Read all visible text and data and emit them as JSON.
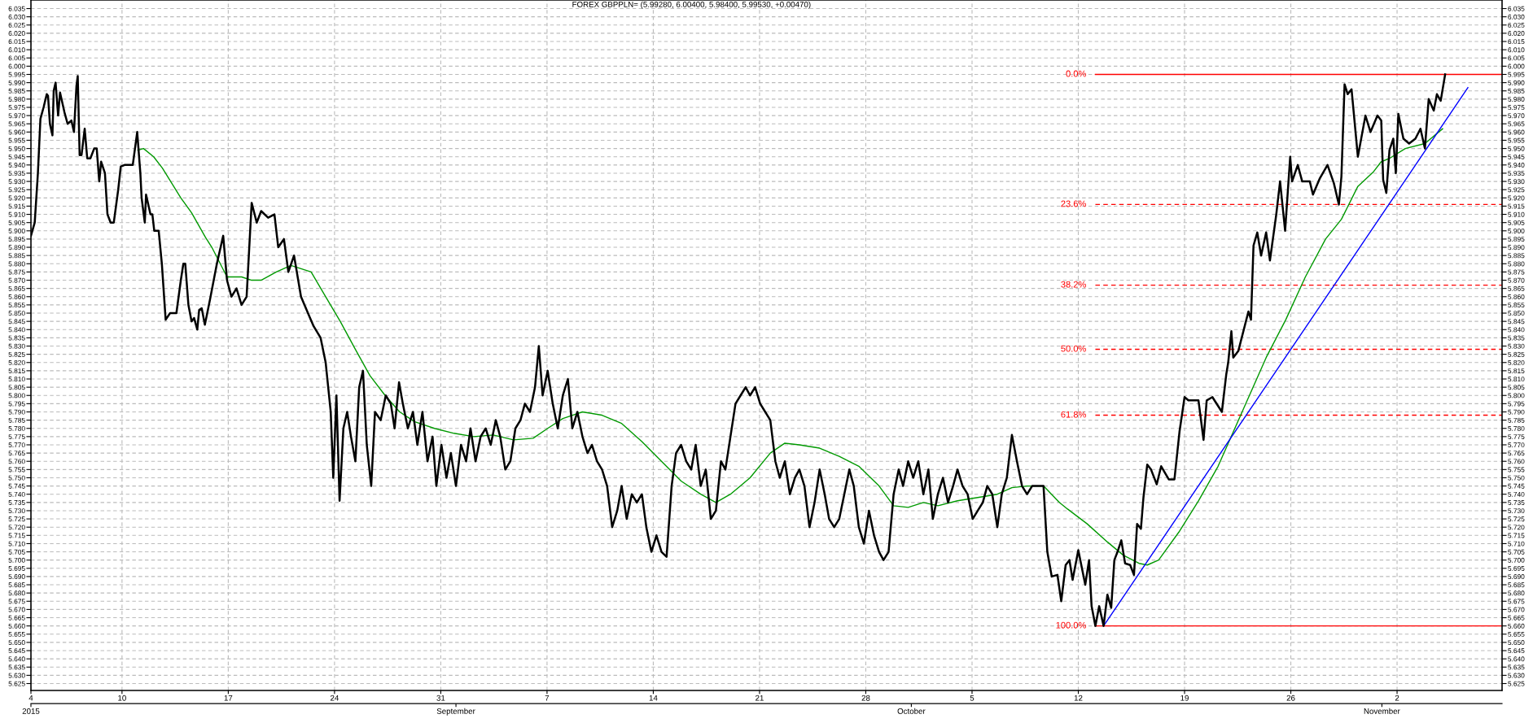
{
  "chart_data": {
    "type": "line",
    "title": "FOREX GBPPLN= (5.99280, 6.00400, 5.98400, 5.99530, +0.00470)",
    "xlim": [
      "2015-08-04T00:00",
      "2015-11-08T22:00"
    ],
    "xticks": [
      {
        "value": "2015-08-04",
        "label": "4"
      },
      {
        "value": "2015-08-10",
        "label": "10"
      },
      {
        "value": "2015-08-17",
        "label": "17"
      },
      {
        "value": "2015-08-24",
        "label": "24"
      },
      {
        "value": "2015-08-31",
        "label": "31"
      },
      {
        "value": "2015-09-07",
        "label": "7"
      },
      {
        "value": "2015-09-14",
        "label": "14"
      },
      {
        "value": "2015-09-21",
        "label": "21"
      },
      {
        "value": "2015-09-28",
        "label": "28"
      },
      {
        "value": "2015-10-05",
        "label": "5"
      },
      {
        "value": "2015-10-12",
        "label": "12"
      },
      {
        "value": "2015-10-19",
        "label": "19"
      },
      {
        "value": "2015-10-26",
        "label": "26"
      },
      {
        "value": "2015-11-02",
        "label": "2"
      }
    ],
    "x2lim": [
      "2015-08-04T00:00",
      "2015-11-08T22:00"
    ],
    "x2ticks": [
      {
        "value": "2015-08-04",
        "label": "2015"
      },
      {
        "value": "2015-09-01",
        "label": "September"
      },
      {
        "value": "2015-10-01",
        "label": "October"
      },
      {
        "value": "2015-11-01",
        "label": "November"
      }
    ],
    "ylim": [
      5.6208,
      6.0402
    ],
    "yticks": [
      5.625,
      {
        "value": 5.63,
        "label": "5.630"
      },
      5.635,
      {
        "value": 5.64,
        "label": "5.640"
      },
      5.645,
      {
        "value": 5.65,
        "label": "5.650"
      },
      5.655,
      {
        "value": 5.66,
        "label": "5.660"
      },
      5.665,
      {
        "value": 5.67,
        "label": "5.670"
      },
      5.675,
      {
        "value": 5.68,
        "label": "5.680"
      },
      5.685,
      {
        "value": 5.69,
        "label": "5.690"
      },
      5.695,
      {
        "value": 5.7,
        "label": "5.700"
      },
      5.705,
      {
        "value": 5.71,
        "label": "5.710"
      },
      5.715,
      {
        "value": 5.72,
        "label": "5.720"
      },
      5.725,
      {
        "value": 5.73,
        "label": "5.730"
      },
      5.735,
      {
        "value": 5.74,
        "label": "5.740"
      },
      5.745,
      {
        "value": 5.75,
        "label": "5.750"
      },
      5.755,
      {
        "value": 5.76,
        "label": "5.760"
      },
      5.765,
      {
        "value": 5.77,
        "label": "5.770"
      },
      5.775,
      {
        "value": 5.78,
        "label": "5.780"
      },
      5.785,
      {
        "value": 5.79,
        "label": "5.790"
      },
      5.795,
      {
        "value": 5.8,
        "label": "5.800"
      },
      5.805,
      {
        "value": 5.81,
        "label": "5.810"
      },
      5.815,
      {
        "value": 5.82,
        "label": "5.820"
      },
      5.825,
      {
        "value": 5.83,
        "label": "5.830"
      },
      5.835,
      {
        "value": 5.84,
        "label": "5.840"
      },
      5.845,
      {
        "value": 5.85,
        "label": "5.850"
      },
      5.855,
      {
        "value": 5.86,
        "label": "5.860"
      },
      5.865,
      {
        "value": 5.87,
        "label": "5.870"
      },
      5.875,
      {
        "value": 5.88,
        "label": "5.880"
      },
      5.885,
      {
        "value": 5.89,
        "label": "5.890"
      },
      5.895,
      {
        "value": 5.9,
        "label": "5.900"
      },
      5.905,
      {
        "value": 5.91,
        "label": "5.910"
      },
      5.915,
      {
        "value": 5.92,
        "label": "5.920"
      },
      5.925,
      {
        "value": 5.93,
        "label": "5.930"
      },
      5.935,
      {
        "value": 5.94,
        "label": "5.940"
      },
      5.945,
      {
        "value": 5.95,
        "label": "5.950"
      },
      5.955,
      {
        "value": 5.96,
        "label": "5.960"
      },
      5.965,
      {
        "value": 5.97,
        "label": "5.970"
      },
      5.975,
      {
        "value": 5.98,
        "label": "5.980"
      },
      5.985,
      {
        "value": 5.99,
        "label": "5.990"
      },
      5.995,
      {
        "value": 6.0,
        "label": "6.000"
      },
      6.005,
      {
        "value": 6.01,
        "label": "6.010"
      },
      6.015,
      {
        "value": 6.02,
        "label": "6.020"
      },
      6.025,
      {
        "value": 6.03,
        "label": "6.030"
      },
      6.035
    ],
    "y2lim": [
      5.6208,
      6.0402
    ],
    "y2ticks": [
      5.625,
      {
        "value": 5.63,
        "label": "5.630"
      },
      5.635,
      {
        "value": 5.64,
        "label": "5.640"
      },
      5.645,
      {
        "value": 5.65,
        "label": "5.650"
      },
      5.655,
      {
        "value": 5.66,
        "label": "5.660"
      },
      5.665,
      {
        "value": 5.67,
        "label": "5.670"
      },
      5.675,
      {
        "value": 5.68,
        "label": "5.680"
      },
      5.685,
      {
        "value": 5.69,
        "label": "5.690"
      },
      5.695,
      {
        "value": 5.7,
        "label": "5.700"
      },
      5.705,
      {
        "value": 5.71,
        "label": "5.710"
      },
      5.715,
      {
        "value": 5.72,
        "label": "5.720"
      },
      5.725,
      {
        "value": 5.73,
        "label": "5.730"
      },
      5.735,
      {
        "value": 5.74,
        "label": "5.740"
      },
      5.745,
      {
        "value": 5.75,
        "label": "5.750"
      },
      5.755,
      {
        "value": 5.76,
        "label": "5.760"
      },
      5.765,
      {
        "value": 5.77,
        "label": "5.770"
      },
      5.775,
      {
        "value": 5.78,
        "label": "5.780"
      },
      5.785,
      {
        "value": 5.79,
        "label": "5.790"
      },
      5.795,
      {
        "value": 5.8,
        "label": "5.800"
      },
      5.805,
      {
        "value": 5.81,
        "label": "5.810"
      },
      5.815,
      {
        "value": 5.82,
        "label": "5.820"
      },
      5.825,
      {
        "value": 5.83,
        "label": "5.830"
      },
      5.835,
      {
        "value": 5.84,
        "label": "5.840"
      },
      5.845,
      {
        "value": 5.85,
        "label": "5.850"
      },
      5.855,
      {
        "value": 5.86,
        "label": "5.860"
      },
      5.865,
      {
        "value": 5.87,
        "label": "5.870"
      },
      5.875,
      {
        "value": 5.88,
        "label": "5.880"
      },
      5.885,
      {
        "value": 5.89,
        "label": "5.890"
      },
      5.895,
      {
        "value": 5.9,
        "label": "5.900"
      },
      5.905,
      {
        "value": 5.91,
        "label": "5.910"
      },
      5.915,
      {
        "value": 5.92,
        "label": "5.920"
      },
      5.925,
      {
        "value": 5.93,
        "label": "5.930"
      },
      5.935,
      {
        "value": 5.94,
        "label": "5.940"
      },
      5.945,
      {
        "value": 5.95,
        "label": "5.950"
      },
      5.955,
      {
        "value": 5.96,
        "label": "5.960"
      },
      5.965,
      {
        "value": 5.97,
        "label": "5.970"
      },
      5.975,
      {
        "value": 5.98,
        "label": "5.980"
      },
      5.985,
      {
        "value": 5.99,
        "label": "5.990"
      },
      5.995,
      {
        "value": 6.0,
        "label": "6.000"
      },
      6.005,
      {
        "value": 6.01,
        "label": "6.010"
      },
      6.015,
      {
        "value": 6.02,
        "label": "6.020"
      },
      6.025,
      {
        "value": 6.03,
        "label": "6.030"
      },
      6.035
    ],
    "grid": true,
    "series": [
      {
        "color": "#000000",
        "x": [
          "2015-08-04T00:00",
          "2015-08-04T06:00",
          "2015-08-04T11:00",
          "2015-08-04T15:00",
          "2015-08-04T20:00",
          "2015-08-05T01:00",
          "2015-08-05T03:00",
          "2015-08-05T06:00",
          "2015-08-05T10:00",
          "2015-08-05T12:00",
          "2015-08-05T15:00",
          "2015-08-05T19:00",
          "2015-08-05T22:00",
          "2015-08-06T05:00",
          "2015-08-06T10:00",
          "2015-08-06T16:00",
          "2015-08-06T20:00",
          "2015-08-07T00:00",
          "2015-08-07T02:00",
          "2015-08-07T05:00",
          "2015-08-07T08:00",
          "2015-08-07T13:00",
          "2015-08-07T17:00",
          "2015-08-07T22:00",
          "2015-08-08T04:00",
          "2015-08-08T08:00",
          "2015-08-08T12:00",
          "2015-08-08T15:00",
          "2015-08-08T21:00",
          "2015-08-09T01:00",
          "2015-08-09T06:00",
          "2015-08-09T11:00",
          "2015-08-09T18:00",
          "2015-08-09T22:00",
          "2015-08-10T04:00",
          "2015-08-10T17:00",
          "2015-08-11T00:00",
          "2015-08-11T05:00",
          "2015-08-11T07:00",
          "2015-08-11T12:00",
          "2015-08-11T14:00",
          "2015-08-11T21:00",
          "2015-08-12T00:00",
          "2015-08-12T03:00",
          "2015-08-12T10:00",
          "2015-08-12T15:00",
          "2015-08-12T21:00",
          "2015-08-13T04:00",
          "2015-08-13T14:00",
          "2015-08-13T21:00",
          "2015-08-14T01:00",
          "2015-08-14T04:00",
          "2015-08-14T09:00",
          "2015-08-14T14:00",
          "2015-08-14T18:00",
          "2015-08-14T23:00",
          "2015-08-15T02:00",
          "2015-08-15T06:00",
          "2015-08-15T11:00",
          "2015-08-15T19:00",
          "2015-08-16T06:00",
          "2015-08-16T16:00",
          "2015-08-16T22:00",
          "2015-08-17T05:00",
          "2015-08-17T13:00",
          "2015-08-17T21:00",
          "2015-08-18T05:00",
          "2015-08-18T13:00",
          "2015-08-18T21:00",
          "2015-08-19T04:00",
          "2015-08-19T15:00",
          "2015-08-20T01:00",
          "2015-08-20T07:00",
          "2015-08-20T16:00",
          "2015-08-20T23:00",
          "2015-08-21T08:00",
          "2015-08-21T19:00",
          "2015-08-22T06:00",
          "2015-08-22T15:00",
          "2015-08-23T02:00",
          "2015-08-23T10:00",
          "2015-08-23T18:00",
          "2015-08-23T22:00",
          "2015-08-24T03:00",
          "2015-08-24T08:00",
          "2015-08-24T14:00",
          "2015-08-24T20:00",
          "2015-08-25T02:00",
          "2015-08-25T09:00",
          "2015-08-25T15:00",
          "2015-08-25T21:00",
          "2015-08-26T03:00",
          "2015-08-26T10:00",
          "2015-08-26T16:00",
          "2015-08-27T01:00",
          "2015-08-27T09:00",
          "2015-08-27T17:00",
          "2015-08-27T23:00",
          "2015-08-28T06:00",
          "2015-08-28T12:00",
          "2015-08-28T20:00",
          "2015-08-29T04:00",
          "2015-08-29T11:00",
          "2015-08-29T19:00",
          "2015-08-30T03:00",
          "2015-08-30T11:00",
          "2015-08-30T17:00",
          "2015-08-31T01:00",
          "2015-08-31T09:00",
          "2015-08-31T16:00",
          "2015-09-01T00:00",
          "2015-09-01T08:00",
          "2015-09-01T16:00",
          "2015-09-01T23:00",
          "2015-09-02T07:00",
          "2015-09-02T15:00",
          "2015-09-02T23:00",
          "2015-09-03T07:00",
          "2015-09-03T15:00",
          "2015-09-03T22:00",
          "2015-09-04T06:00",
          "2015-09-04T14:00",
          "2015-09-04T22:00",
          "2015-09-05T06:00",
          "2015-09-05T13:00",
          "2015-09-05T21:00",
          "2015-09-06T05:00",
          "2015-09-06T11:00",
          "2015-09-06T17:00",
          "2015-09-07T01:00",
          "2015-09-07T09:00",
          "2015-09-07T17:00",
          "2015-09-08T01:00",
          "2015-09-08T09:00",
          "2015-09-08T16:00",
          "2015-09-09T00:00",
          "2015-09-09T08:00",
          "2015-09-09T16:00",
          "2015-09-09T23:00",
          "2015-09-10T07:00",
          "2015-09-10T15:00",
          "2015-09-10T23:00",
          "2015-09-11T07:00",
          "2015-09-11T15:00",
          "2015-09-11T22:00",
          "2015-09-12T06:00",
          "2015-09-12T14:00",
          "2015-09-12T22:00",
          "2015-09-13T06:00",
          "2015-09-13T13:00",
          "2015-09-13T21:00",
          "2015-09-14T05:00",
          "2015-09-14T13:00",
          "2015-09-14T21:00",
          "2015-09-15T05:00",
          "2015-09-15T12:00",
          "2015-09-15T20:00",
          "2015-09-16T04:00",
          "2015-09-16T12:00",
          "2015-09-16T19:00",
          "2015-09-17T03:00",
          "2015-09-17T11:00",
          "2015-09-17T19:00",
          "2015-09-18T03:00",
          "2015-09-18T11:00",
          "2015-09-18T18:00",
          "2015-09-19T02:00",
          "2015-09-19T10:00",
          "2015-09-19T18:00",
          "2015-09-20T02:00",
          "2015-09-20T09:00",
          "2015-09-20T17:00",
          "2015-09-21T01:00",
          "2015-09-21T09:00",
          "2015-09-21T17:00",
          "2015-09-22T01:00",
          "2015-09-22T08:00",
          "2015-09-22T16:00",
          "2015-09-23T00:00",
          "2015-09-23T08:00",
          "2015-09-23T15:00",
          "2015-09-23T23:00",
          "2015-09-24T07:00",
          "2015-09-24T15:00",
          "2015-09-24T23:00",
          "2015-09-25T07:00",
          "2015-09-25T14:00",
          "2015-09-25T22:00",
          "2015-09-26T06:00",
          "2015-09-26T14:00",
          "2015-09-26T22:00",
          "2015-09-27T05:00",
          "2015-09-27T13:00",
          "2015-09-27T21:00",
          "2015-09-28T05:00",
          "2015-09-28T13:00",
          "2015-09-28T21:00",
          "2015-09-29T04:00",
          "2015-09-29T12:00",
          "2015-09-29T20:00",
          "2015-09-30T04:00",
          "2015-09-30T11:00",
          "2015-09-30T19:00",
          "2015-10-01T03:00",
          "2015-10-01T11:00",
          "2015-10-01T19:00",
          "2015-10-02T03:00",
          "2015-10-02T10:00",
          "2015-10-02T18:00",
          "2015-10-03T02:00",
          "2015-10-03T10:00",
          "2015-10-03T18:00",
          "2015-10-04T01:00",
          "2015-10-04T09:00",
          "2015-10-04T17:00",
          "2015-10-05T01:00",
          "2015-10-05T09:00",
          "2015-10-05T17:00",
          "2015-10-06T00:00",
          "2015-10-06T08:00",
          "2015-10-06T16:00",
          "2015-10-06T23:00",
          "2015-10-07T07:00",
          "2015-10-07T15:00",
          "2015-10-07T23:00",
          "2015-10-08T07:00",
          "2015-10-08T15:00",
          "2015-10-08T23:00",
          "2015-10-09T17:00",
          "2015-10-09T23:00",
          "2015-10-10T06:00",
          "2015-10-10T15:00",
          "2015-10-10T21:00",
          "2015-10-11T04:00",
          "2015-10-11T10:00",
          "2015-10-11T15:00",
          "2015-10-12T00:00",
          "2015-10-12T11:00",
          "2015-10-12T17:00",
          "2015-10-12T21:00",
          "2015-10-13T03:00",
          "2015-10-13T09:00",
          "2015-10-13T16:00",
          "2015-10-13T22:00",
          "2015-10-14T04:00",
          "2015-10-14T09:00",
          "2015-10-14T14:00",
          "2015-10-14T20:00",
          "2015-10-15T02:00",
          "2015-10-15T10:00",
          "2015-10-15T16:00",
          "2015-10-15T21:00",
          "2015-10-16T03:00",
          "2015-10-16T07:00",
          "2015-10-16T13:00",
          "2015-10-16T19:00",
          "2015-10-17T04:00",
          "2015-10-17T11:00",
          "2015-10-17T23:00",
          "2015-10-18T08:00",
          "2015-10-18T16:00",
          "2015-10-19T00:00",
          "2015-10-19T06:00",
          "2015-10-19T22:00",
          "2015-10-20T06:00",
          "2015-10-20T11:00",
          "2015-10-20T20:00",
          "2015-10-21T11:00",
          "2015-10-21T18:00",
          "2015-10-21T21:00",
          "2015-10-22T02:00",
          "2015-10-22T05:00",
          "2015-10-22T13:00",
          "2015-10-22T19:00",
          "2015-10-23T05:00",
          "2015-10-23T09:00",
          "2015-10-23T13:00",
          "2015-10-23T19:00",
          "2015-10-24T01:00",
          "2015-10-24T09:00",
          "2015-10-24T15:00",
          "2015-10-25T01:00",
          "2015-10-25T07:00",
          "2015-10-25T15:00",
          "2015-10-25T23:00",
          "2015-10-26T02:00",
          "2015-10-26T11:00",
          "2015-10-26T18:00",
          "2015-10-27T06:00",
          "2015-10-27T11:00",
          "2015-10-27T22:00",
          "2015-10-28T10:00",
          "2015-10-28T20:00",
          "2015-10-29T04:00",
          "2015-10-29T08:00",
          "2015-10-29T13:00",
          "2015-10-29T18:00",
          "2015-10-30T00:00",
          "2015-10-30T10:00",
          "2015-10-30T22:00",
          "2015-10-31T06:00",
          "2015-10-31T17:00",
          "2015-10-31T23:00",
          "2015-11-01T02:00",
          "2015-11-01T07:00",
          "2015-11-01T12:00",
          "2015-11-01T18:00",
          "2015-11-01T22:00",
          "2015-11-02T02:00",
          "2015-11-02T10:00",
          "2015-11-02T19:00",
          "2015-11-03T05:00",
          "2015-11-03T13:00",
          "2015-11-03T20:00",
          "2015-11-04T02:00",
          "2015-11-04T10:00",
          "2015-11-04T15:00",
          "2015-11-04T21:00",
          "2015-11-05T04:00"
        ],
        "values": [
          5.897,
          5.905,
          5.935,
          5.968,
          5.975,
          5.983,
          5.982,
          5.965,
          5.958,
          5.985,
          5.99,
          5.97,
          5.984,
          5.972,
          5.965,
          5.967,
          5.96,
          5.988,
          5.994,
          5.946,
          5.946,
          5.962,
          5.944,
          5.944,
          5.95,
          5.95,
          5.93,
          5.942,
          5.935,
          5.91,
          5.905,
          5.905,
          5.925,
          5.939,
          5.94,
          5.94,
          5.96,
          5.935,
          5.92,
          5.905,
          5.922,
          5.91,
          5.91,
          5.9,
          5.9,
          5.88,
          5.846,
          5.85,
          5.85,
          5.87,
          5.88,
          5.88,
          5.855,
          5.845,
          5.847,
          5.84,
          5.852,
          5.853,
          5.843,
          5.858,
          5.88,
          5.897,
          5.87,
          5.86,
          5.865,
          5.855,
          5.86,
          5.917,
          5.905,
          5.912,
          5.908,
          5.91,
          5.89,
          5.895,
          5.875,
          5.885,
          5.86,
          5.85,
          5.842,
          5.835,
          5.82,
          5.79,
          5.75,
          5.8,
          5.736,
          5.78,
          5.79,
          5.775,
          5.76,
          5.805,
          5.815,
          5.77,
          5.745,
          5.79,
          5.785,
          5.8,
          5.795,
          5.78,
          5.808,
          5.795,
          5.78,
          5.79,
          5.77,
          5.79,
          5.76,
          5.775,
          5.745,
          5.77,
          5.75,
          5.765,
          5.745,
          5.77,
          5.76,
          5.78,
          5.76,
          5.775,
          5.78,
          5.77,
          5.785,
          5.775,
          5.755,
          5.76,
          5.78,
          5.785,
          5.795,
          5.79,
          5.805,
          5.83,
          5.8,
          5.815,
          5.795,
          5.78,
          5.8,
          5.81,
          5.78,
          5.79,
          5.775,
          5.765,
          5.77,
          5.76,
          5.755,
          5.745,
          5.72,
          5.73,
          5.745,
          5.725,
          5.74,
          5.735,
          5.74,
          5.72,
          5.705,
          5.715,
          5.705,
          5.702,
          5.745,
          5.765,
          5.77,
          5.76,
          5.755,
          5.77,
          5.745,
          5.755,
          5.725,
          5.73,
          5.76,
          5.755,
          5.775,
          5.795,
          5.8,
          5.805,
          5.8,
          5.805,
          5.795,
          5.79,
          5.785,
          5.76,
          5.75,
          5.76,
          5.74,
          5.75,
          5.755,
          5.745,
          5.72,
          5.735,
          5.755,
          5.74,
          5.725,
          5.72,
          5.725,
          5.74,
          5.755,
          5.745,
          5.72,
          5.71,
          5.73,
          5.715,
          5.705,
          5.7,
          5.705,
          5.74,
          5.755,
          5.745,
          5.76,
          5.75,
          5.76,
          5.74,
          5.755,
          5.725,
          5.74,
          5.75,
          5.735,
          5.745,
          5.755,
          5.745,
          5.74,
          5.725,
          5.73,
          5.735,
          5.745,
          5.74,
          5.72,
          5.74,
          5.75,
          5.776,
          5.76,
          5.745,
          5.74,
          5.745,
          5.745,
          5.705,
          5.69,
          5.691,
          5.675,
          5.697,
          5.7,
          5.688,
          5.706,
          5.685,
          5.7,
          5.672,
          5.66,
          5.672,
          5.66,
          5.679,
          5.671,
          5.7,
          5.705,
          5.712,
          5.698,
          5.697,
          5.691,
          5.722,
          5.719,
          5.738,
          5.758,
          5.755,
          5.746,
          5.757,
          5.749,
          5.749,
          5.778,
          5.799,
          5.797,
          5.797,
          5.773,
          5.797,
          5.799,
          5.79,
          5.813,
          5.82,
          5.839,
          5.823,
          5.827,
          5.836,
          5.851,
          5.846,
          5.891,
          5.899,
          5.885,
          5.899,
          5.882,
          5.91,
          5.93,
          5.9,
          5.945,
          5.93,
          5.94,
          5.93,
          5.93,
          5.922,
          5.932,
          5.94,
          5.929,
          5.916,
          5.933,
          5.989,
          5.983,
          5.986,
          5.945,
          5.97,
          5.96,
          5.97,
          5.967,
          5.931,
          5.923,
          5.949,
          5.956,
          5.935,
          5.971,
          5.956,
          5.953,
          5.956,
          5.962,
          5.95,
          5.98,
          5.973,
          5.983,
          5.979,
          5.995
        ]
      },
      {
        "color": "#009900",
        "x": [
          "2015-08-11T01:00",
          "2015-08-11T10:00",
          "2015-08-12T02:00",
          "2015-08-12T16:00",
          "2015-08-13T21:00",
          "2015-08-14T14:00",
          "2015-08-15T12:00",
          "2015-08-15T22:00",
          "2015-08-16T22:00",
          "2015-08-17T21:00",
          "2015-08-18T13:00",
          "2015-08-19T04:00",
          "2015-08-20T04:00",
          "2015-08-21T03:00",
          "2015-08-21T19:00",
          "2015-08-22T11:00",
          "2015-08-23T10:00",
          "2015-08-24T09:00",
          "2015-08-25T09:00",
          "2015-08-26T08:00",
          "2015-08-27T08:00",
          "2015-08-28T07:00",
          "2015-08-29T07:00",
          "2015-08-30T14:00",
          "2015-08-31T21:00",
          "2015-09-02T04:00",
          "2015-09-03T11:00",
          "2015-09-04T19:00",
          "2015-09-06T02:00",
          "2015-09-07T01:00",
          "2015-09-08T01:00",
          "2015-09-09T08:00",
          "2015-09-10T15:00",
          "2015-09-11T22:00",
          "2015-09-13T06:00",
          "2015-09-14T13:00",
          "2015-09-15T20:00",
          "2015-09-17T03:00",
          "2015-09-18T03:00",
          "2015-09-19T02:00",
          "2015-09-20T09:00",
          "2015-09-21T17:00",
          "2015-09-22T16:00",
          "2015-09-23T15:00",
          "2015-09-24T23:00",
          "2015-09-26T06:00",
          "2015-09-27T13:00",
          "2015-09-28T21:00",
          "2015-09-29T20:00",
          "2015-09-30T19:00",
          "2015-10-01T19:00",
          "2015-10-02T18:00",
          "2015-10-04T01:00",
          "2015-10-05T09:00",
          "2015-10-06T16:00",
          "2015-10-07T15:00",
          "2015-10-08T15:00",
          "2015-10-09T17:00",
          "2015-10-10T18:00",
          "2015-10-11T07:00",
          "2015-10-12T14:00",
          "2015-10-13T22:00",
          "2015-10-14T23:00",
          "2015-10-16T00:00",
          "2015-10-16T13:00",
          "2015-10-17T07:00",
          "2015-10-18T15:00",
          "2015-10-19T22:00",
          "2015-10-21T05:00",
          "2015-10-22T19:00",
          "2015-10-24T09:00",
          "2015-10-25T16:00",
          "2015-10-26T23:00",
          "2015-10-28T07:00",
          "2015-10-29T08:00",
          "2015-10-30T10:00",
          "2015-10-31T11:00",
          "2015-10-31T23:00",
          "2015-11-01T12:00",
          "2015-11-02T13:00",
          "2015-11-03T20:00",
          "2015-11-05T00:00"
        ],
        "values": [
          5.949,
          5.95,
          5.945,
          5.938,
          5.92,
          5.911,
          5.896,
          5.89,
          5.872,
          5.872,
          5.87,
          5.87,
          5.875,
          5.879,
          5.877,
          5.875,
          5.86,
          5.845,
          5.828,
          5.812,
          5.8,
          5.79,
          5.784,
          5.78,
          5.777,
          5.775,
          5.776,
          5.773,
          5.774,
          5.78,
          5.786,
          5.79,
          5.788,
          5.783,
          5.772,
          5.76,
          5.748,
          5.74,
          5.735,
          5.74,
          5.75,
          5.765,
          5.771,
          5.77,
          5.768,
          5.763,
          5.757,
          5.745,
          5.733,
          5.732,
          5.735,
          5.733,
          5.736,
          5.738,
          5.74,
          5.744,
          5.745,
          5.745,
          5.735,
          5.731,
          5.722,
          5.711,
          5.703,
          5.698,
          5.697,
          5.7,
          5.717,
          5.736,
          5.757,
          5.79,
          5.823,
          5.846,
          5.872,
          5.895,
          5.907,
          5.927,
          5.936,
          5.942,
          5.944,
          5.95,
          5.953,
          5.962
        ]
      },
      {
        "color": "#0000ff",
        "x": [
          "2015-10-13T16:00",
          "2015-11-06T16:00"
        ],
        "values": [
          5.66,
          5.987
        ]
      }
    ],
    "ref_lines": [
      {
        "axis": "y",
        "value": 5.995,
        "color": "#ff0000",
        "line_style": "solid"
      },
      {
        "axis": "y",
        "value": 5.916,
        "color": "#ff0000",
        "line_style": "dashed"
      },
      {
        "axis": "y",
        "value": 5.867,
        "color": "#ff0000",
        "line_style": "dashed"
      },
      {
        "axis": "y",
        "value": 5.828,
        "color": "#ff0000",
        "line_style": "dashed"
      },
      {
        "axis": "y",
        "value": 5.788,
        "color": "#ff0000",
        "line_style": "dashed"
      },
      {
        "axis": "y",
        "value": 5.66,
        "color": "#ff0000",
        "line_style": "solid"
      }
    ],
    "annotations": [
      {
        "text": "0.0%",
        "x": "2015-10-13T03:00",
        "y": 5.995
      },
      {
        "text": "23.6%",
        "x": "2015-10-13T03:00",
        "y": 5.916
      },
      {
        "text": "38.2%",
        "x": "2015-10-13T03:00",
        "y": 5.867
      },
      {
        "text": "50.0%",
        "x": "2015-10-13T03:00",
        "y": 5.828
      },
      {
        "text": "61.8%",
        "x": "2015-10-13T03:00",
        "y": 5.788
      },
      {
        "text": "100.0%",
        "x": "2015-10-13T03:00",
        "y": 5.66
      }
    ]
  }
}
